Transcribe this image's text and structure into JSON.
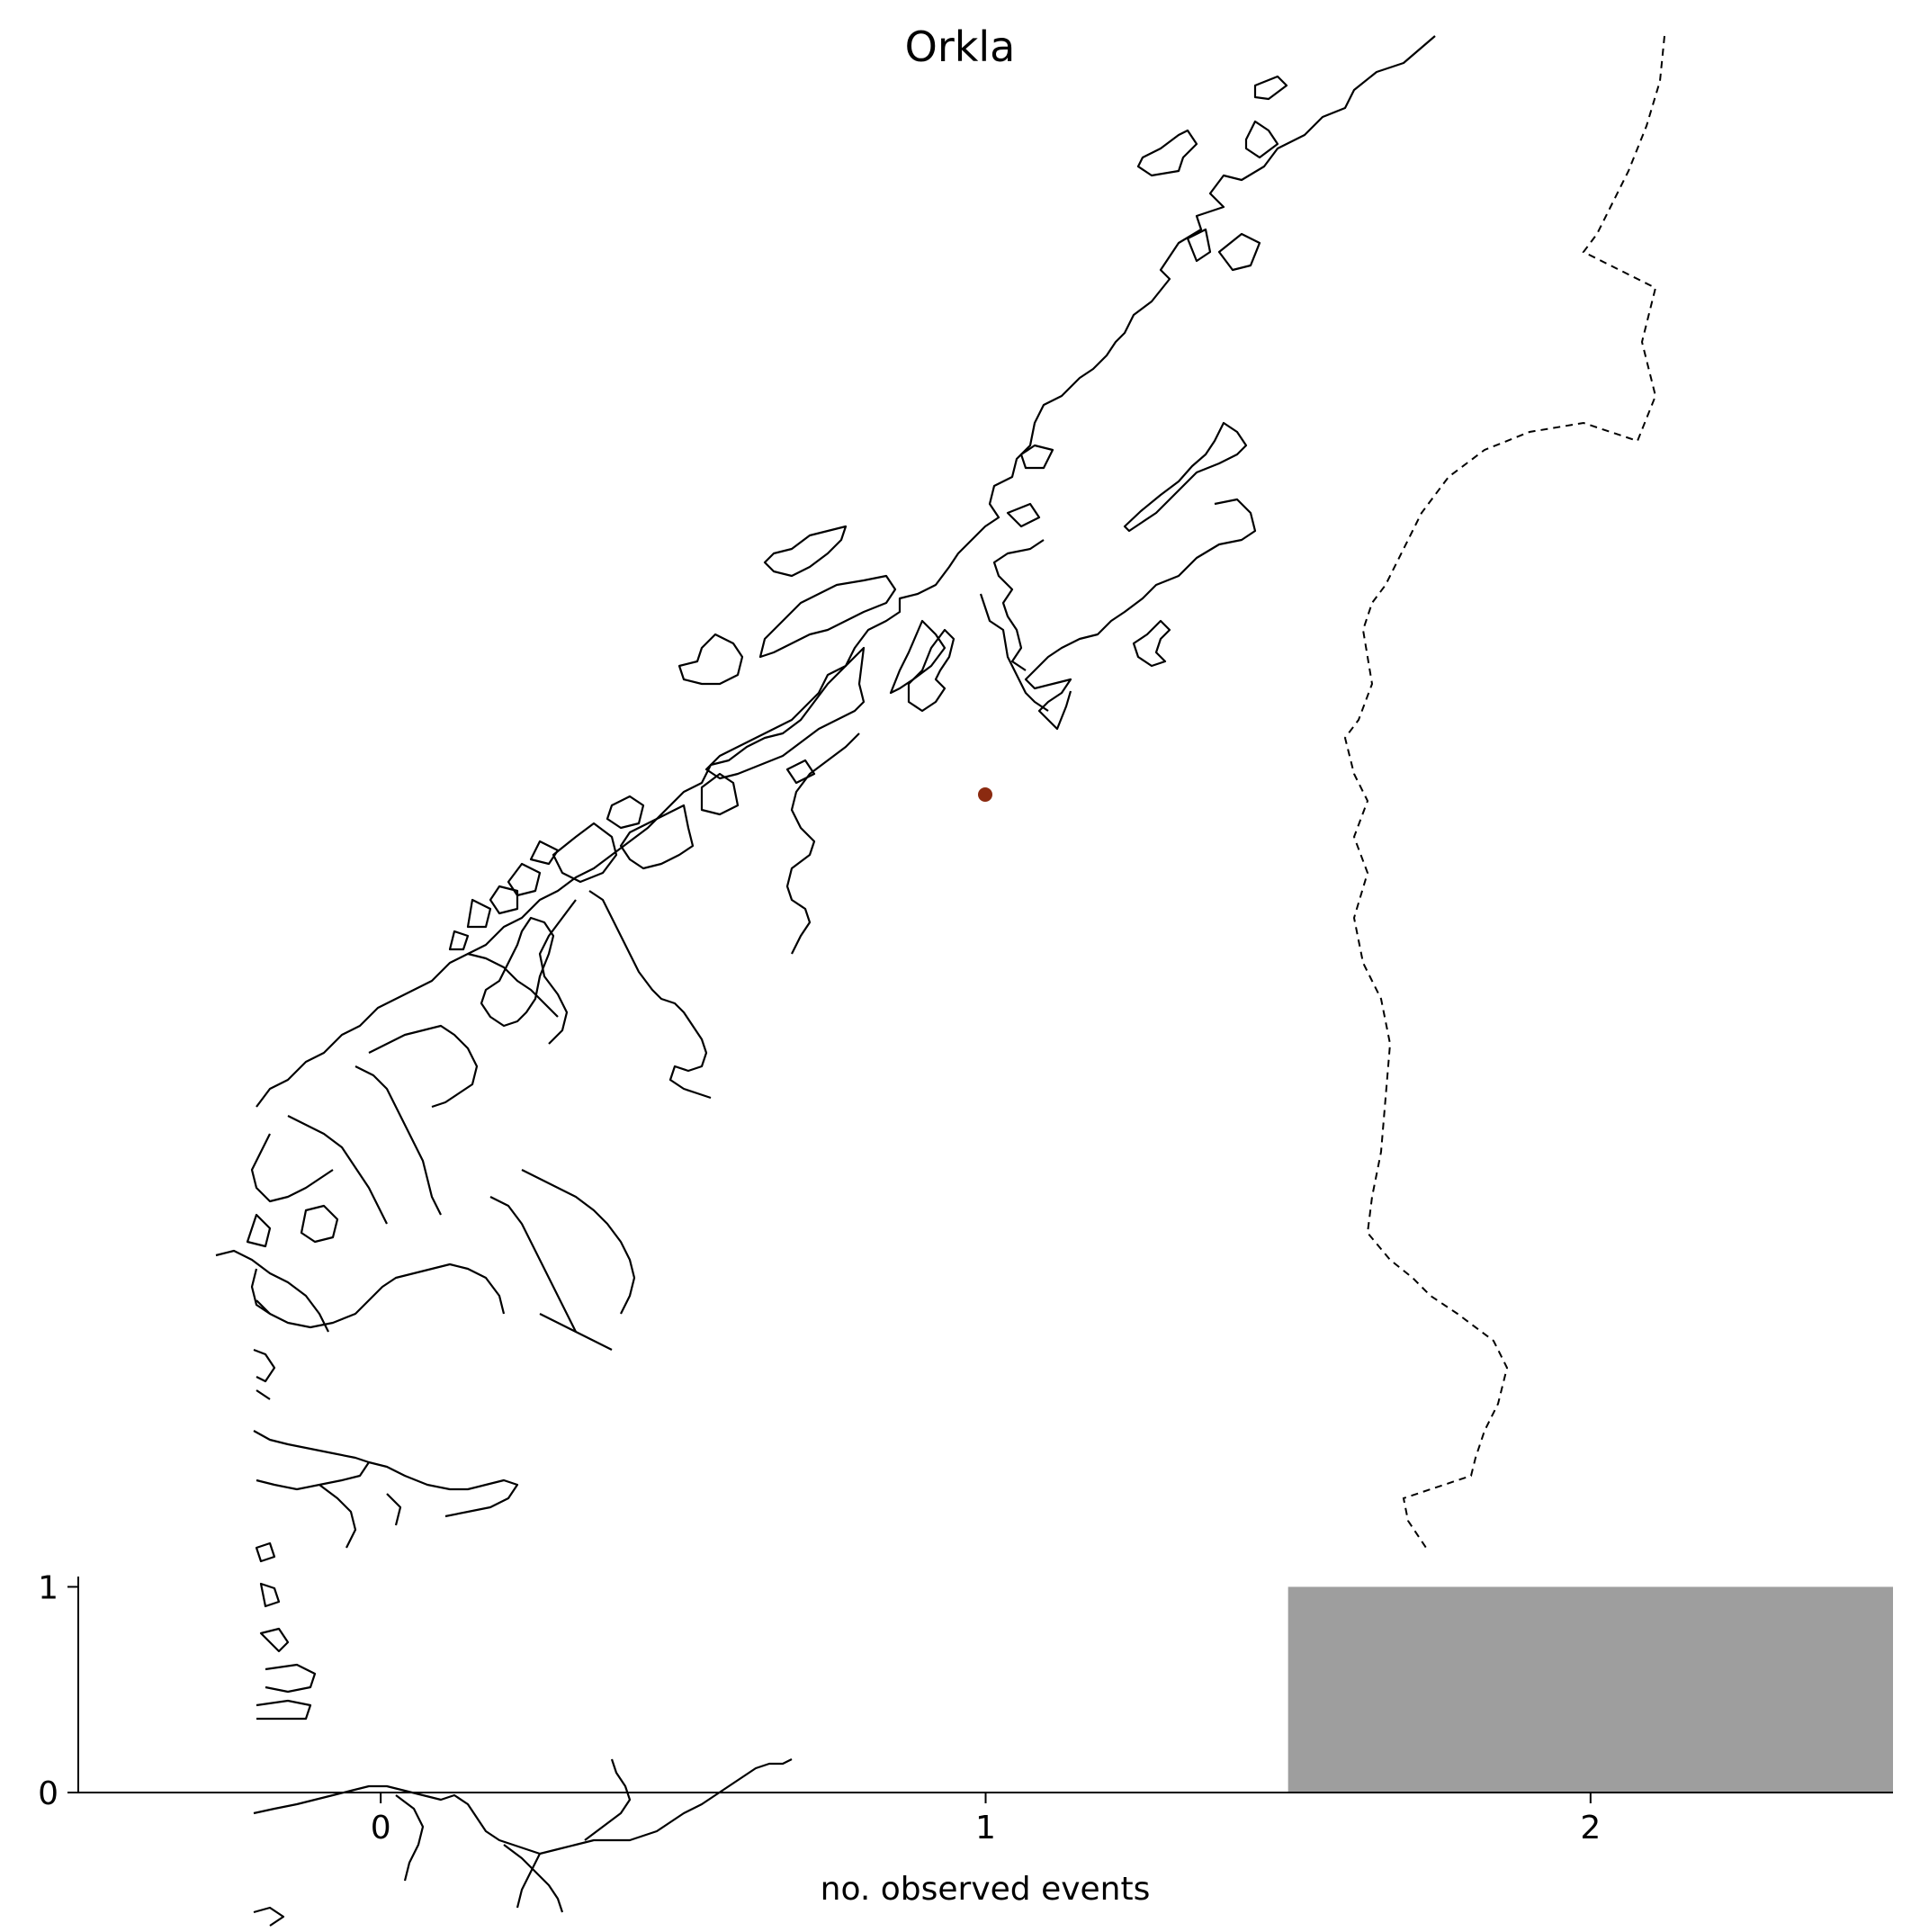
{
  "map": {
    "title": "Orkla",
    "station": {
      "color": "#8B2A10"
    },
    "coastline_color": "#000000",
    "border_style": "dashed"
  },
  "chart_data": {
    "type": "bar",
    "xlabel": "no. observed events",
    "ylabel": "",
    "categories": [
      0,
      1,
      2
    ],
    "values": [
      0,
      0,
      1
    ],
    "bar_color": "#9e9e9e",
    "xlim": [
      -0.5,
      2.5
    ],
    "ylim": [
      0,
      1.05
    ],
    "xticks": [
      "0",
      "1",
      "2"
    ],
    "yticks": [
      "0",
      "1"
    ],
    "grid": false
  }
}
